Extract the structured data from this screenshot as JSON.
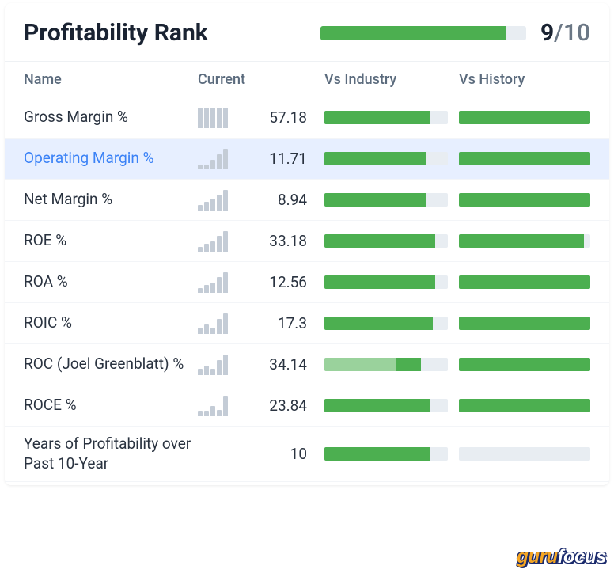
{
  "title": "Profitability Rank",
  "rank": {
    "score": 9,
    "max": 10,
    "bar_fill_pct": 90,
    "bar_color": "#4caf50",
    "bar_bg": "#e8edf2"
  },
  "columns": {
    "name": "Name",
    "current": "Current",
    "industry": "Vs Industry",
    "history": "Vs History"
  },
  "colors": {
    "bar_bg": "#e8edf2",
    "bar_green": "#4caf50",
    "bar_green_light": "#9ad29c",
    "spark_bar": "#c4ccd6",
    "text": "#2a3340",
    "text_header": "#5b6b7d",
    "highlight_bg": "#e7efff",
    "highlight_text": "#3b82f6"
  },
  "rows": [
    {
      "name": "Gross Margin %",
      "highlight": false,
      "spark": [
        100,
        100,
        100,
        100,
        100
      ],
      "current": "57.18",
      "industry": {
        "pct": 85,
        "segments": [
          {
            "color": "#4caf50",
            "pct": 85
          }
        ]
      },
      "history": {
        "pct": 100,
        "segments": [
          {
            "color": "#4caf50",
            "pct": 100
          }
        ]
      }
    },
    {
      "name": "Operating Margin %",
      "highlight": true,
      "spark": [
        20,
        20,
        45,
        70,
        100
      ],
      "current": "11.71",
      "industry": {
        "pct": 82,
        "segments": [
          {
            "color": "#4caf50",
            "pct": 82
          }
        ]
      },
      "history": {
        "pct": 100,
        "segments": [
          {
            "color": "#4caf50",
            "pct": 100
          }
        ]
      }
    },
    {
      "name": "Net Margin %",
      "highlight": false,
      "spark": [
        25,
        40,
        55,
        75,
        100
      ],
      "current": "8.94",
      "industry": {
        "pct": 82,
        "segments": [
          {
            "color": "#4caf50",
            "pct": 82
          }
        ]
      },
      "history": {
        "pct": 100,
        "segments": [
          {
            "color": "#4caf50",
            "pct": 100
          }
        ]
      }
    },
    {
      "name": "ROE %",
      "highlight": false,
      "spark": [
        20,
        35,
        50,
        75,
        100
      ],
      "current": "33.18",
      "industry": {
        "pct": 90,
        "segments": [
          {
            "color": "#4caf50",
            "pct": 90
          }
        ]
      },
      "history": {
        "pct": 95,
        "segments": [
          {
            "color": "#4caf50",
            "pct": 95
          }
        ]
      }
    },
    {
      "name": "ROA %",
      "highlight": false,
      "spark": [
        20,
        35,
        50,
        75,
        100
      ],
      "current": "12.56",
      "industry": {
        "pct": 90,
        "segments": [
          {
            "color": "#4caf50",
            "pct": 90
          }
        ]
      },
      "history": {
        "pct": 100,
        "segments": [
          {
            "color": "#4caf50",
            "pct": 100
          }
        ]
      }
    },
    {
      "name": "ROIC %",
      "highlight": false,
      "spark": [
        30,
        45,
        30,
        70,
        100
      ],
      "current": "17.3",
      "industry": {
        "pct": 88,
        "segments": [
          {
            "color": "#4caf50",
            "pct": 88
          }
        ]
      },
      "history": {
        "pct": 100,
        "segments": [
          {
            "color": "#4caf50",
            "pct": 100
          }
        ]
      }
    },
    {
      "name": "ROC (Joel Greenblatt) %",
      "highlight": false,
      "spark": [
        30,
        45,
        30,
        70,
        100
      ],
      "current": "34.14",
      "industry": {
        "pct": 78,
        "segments": [
          {
            "color": "#9ad29c",
            "pct": 58
          },
          {
            "color": "#4caf50",
            "pct": 20
          }
        ]
      },
      "history": {
        "pct": 100,
        "segments": [
          {
            "color": "#4caf50",
            "pct": 100
          }
        ]
      }
    },
    {
      "name": "ROCE %",
      "highlight": false,
      "spark": [
        25,
        25,
        50,
        30,
        100
      ],
      "current": "23.84",
      "industry": {
        "pct": 85,
        "segments": [
          {
            "color": "#4caf50",
            "pct": 85
          }
        ]
      },
      "history": {
        "pct": 100,
        "segments": [
          {
            "color": "#4caf50",
            "pct": 100
          }
        ]
      }
    },
    {
      "name": "Years of Profitability over Past 10-Year",
      "highlight": false,
      "spark": null,
      "current": "10",
      "industry": {
        "pct": 85,
        "segments": [
          {
            "color": "#4caf50",
            "pct": 85
          }
        ]
      },
      "history": {
        "pct": 0,
        "segments": []
      }
    }
  ],
  "logo": {
    "part1": "guru",
    "part2": "focus"
  }
}
